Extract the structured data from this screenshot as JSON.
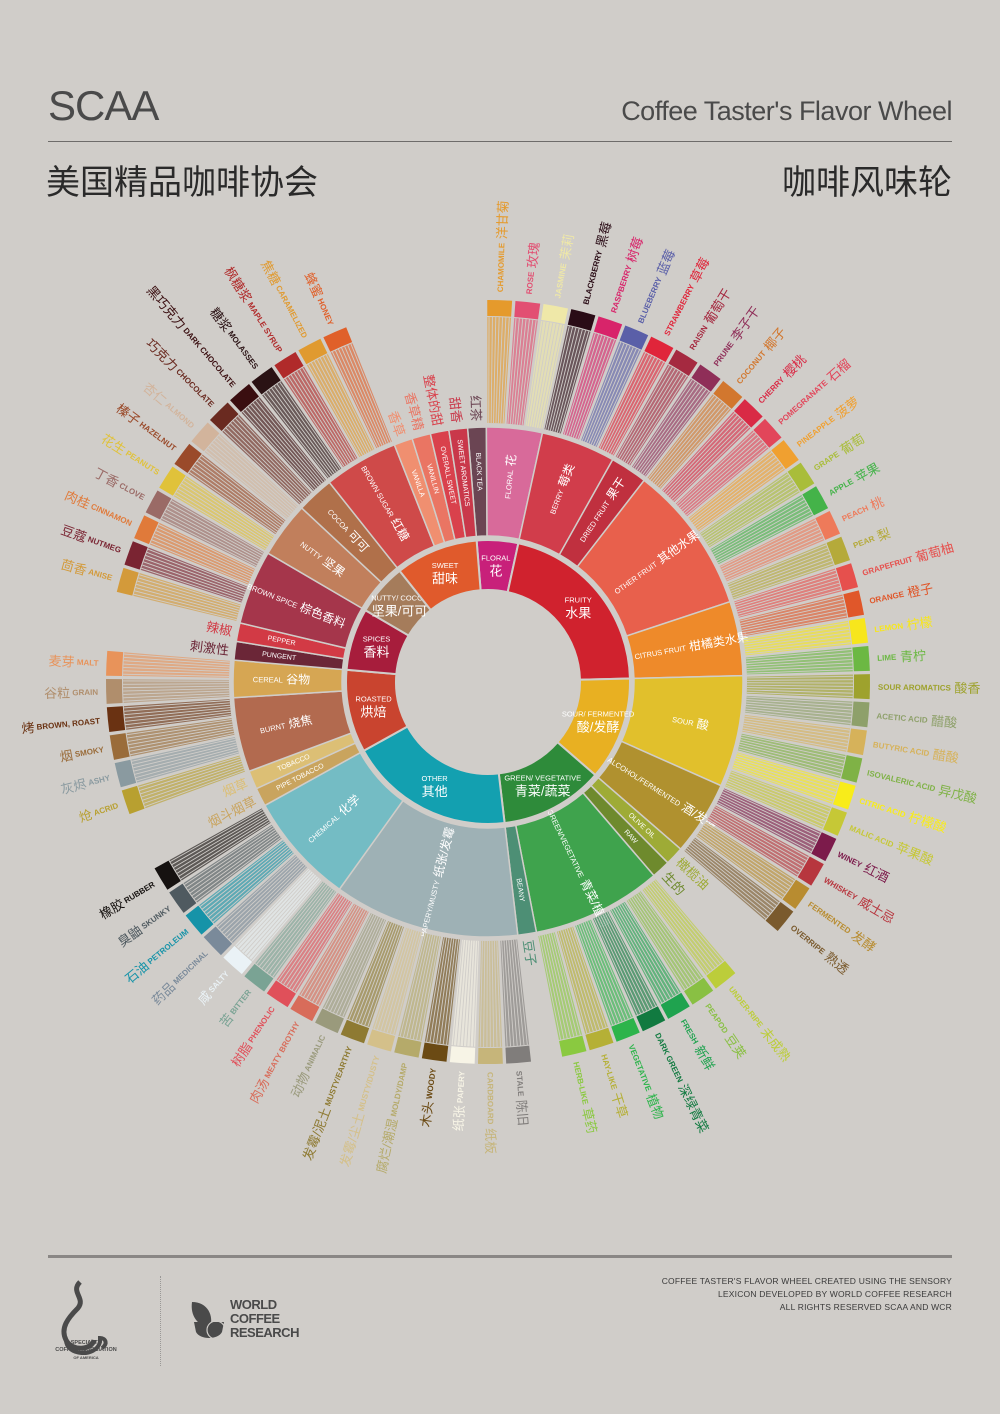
{
  "header": {
    "title_left": "SCAA",
    "title_right": "Coffee Taster's Flavor Wheel",
    "subtitle_left": "美国精品咖啡协会",
    "subtitle_right": "咖啡风味轮"
  },
  "wheel": {
    "background": "#d0cdc9",
    "categories": [
      {
        "en": "FLORAL",
        "zh": "花",
        "color": "#c8207a",
        "children": [
          {
            "en": "BLACK TEA",
            "zh": "红茶",
            "color": "#6b4553"
          },
          {
            "en": "FLORAL",
            "zh": "花",
            "color": "#d86a9a",
            "children": [
              {
                "en": "CHAMOMILE",
                "zh": "洋甘菊",
                "color": "#e59a2c"
              },
              {
                "en": "ROSE",
                "zh": "玫瑰",
                "color": "#e24f72"
              },
              {
                "en": "JASMINE",
                "zh": "茉莉",
                "color": "#efe8a8"
              }
            ]
          }
        ]
      },
      {
        "en": "FRUITY",
        "zh": "水果",
        "color": "#d0222e",
        "children": [
          {
            "en": "BERRY",
            "zh": "莓类",
            "color": "#d13d4b",
            "children": [
              {
                "en": "BLACKBERRY",
                "zh": "黑莓",
                "color": "#2a0c16"
              },
              {
                "en": "RASPBERRY",
                "zh": "树莓",
                "color": "#d8246a"
              },
              {
                "en": "BLUEBERRY",
                "zh": "蓝莓",
                "color": "#5a5fa8"
              },
              {
                "en": "STRAWBERRY",
                "zh": "草莓",
                "color": "#e0253a"
              }
            ]
          },
          {
            "en": "DRIED FRUIT",
            "zh": "果干",
            "color": "#c0303f",
            "children": [
              {
                "en": "RAISIN",
                "zh": "葡萄干",
                "color": "#a52940"
              },
              {
                "en": "PRUNE",
                "zh": "李子干",
                "color": "#8f2e58"
              }
            ]
          },
          {
            "en": "OTHER FRUIT",
            "zh": "其他水果",
            "color": "#e8604c",
            "children": [
              {
                "en": "COCONUT",
                "zh": "椰子",
                "color": "#d2772e"
              },
              {
                "en": "CHERRY",
                "zh": "樱桃",
                "color": "#d92a45"
              },
              {
                "en": "POMEGRANATE",
                "zh": "石榴",
                "color": "#e2465a"
              },
              {
                "en": "PINEAPPLE",
                "zh": "菠萝",
                "color": "#f0a030"
              },
              {
                "en": "GRAPE",
                "zh": "葡萄",
                "color": "#a9bd3a"
              },
              {
                "en": "APPLE",
                "zh": "苹果",
                "color": "#44b349"
              },
              {
                "en": "PEACH",
                "zh": "桃",
                "color": "#ee7a5a"
              },
              {
                "en": "PEAR",
                "zh": "梨",
                "color": "#b5aa3a"
              }
            ]
          },
          {
            "en": "CITRUS FRUIT",
            "zh": "柑橘类水果",
            "color": "#ee8a2a",
            "children": [
              {
                "en": "GRAPEFRUIT",
                "zh": "葡萄柚",
                "color": "#e6504d"
              },
              {
                "en": "ORANGE",
                "zh": "橙子",
                "color": "#e0572a"
              },
              {
                "en": "LEMON",
                "zh": "柠檬",
                "color": "#f7e61c"
              },
              {
                "en": "LIME",
                "zh": "青柠",
                "color": "#6cb843"
              }
            ]
          }
        ]
      },
      {
        "en": "SOUR/ FERMENTED",
        "zh": "酸/发酵",
        "color": "#e8b022",
        "children": [
          {
            "en": "SOUR",
            "zh": "酸",
            "color": "#e1c02c",
            "children": [
              {
                "en": "SOUR AROMATICS",
                "zh": "酸香",
                "color": "#9ea22d"
              },
              {
                "en": "ACETIC ACID",
                "zh": "醋酸",
                "color": "#8ea06a"
              },
              {
                "en": "BUTYRIC ACID",
                "zh": "醋酸",
                "color": "#d6b25a"
              },
              {
                "en": "ISOVALERIC ACID",
                "zh": "异戊酸",
                "color": "#7fb246"
              },
              {
                "en": "CITRIC ACID",
                "zh": "柠檬酸",
                "color": "#f8ec1a"
              },
              {
                "en": "MALIC ACID",
                "zh": "苹果酸",
                "color": "#c6c836"
              }
            ]
          },
          {
            "en": "ALCOHOL/FERMENTED",
            "zh": "酒/发酵",
            "color": "#b0912f",
            "children": [
              {
                "en": "WINEY",
                "zh": "红酒",
                "color": "#7c1b4b"
              },
              {
                "en": "WHISKEY",
                "zh": "威士忌",
                "color": "#b7363e"
              },
              {
                "en": "FERMENTED",
                "zh": "发酵",
                "color": "#b88c30"
              },
              {
                "en": "OVERRIPE",
                "zh": "熟透",
                "color": "#7a5a2d"
              }
            ]
          }
        ]
      },
      {
        "en": "GREEN/ VEGETATIVE",
        "zh": "青菜/蔬菜",
        "color": "#2e8b3a",
        "children": [
          {
            "en": "OLIVE OIL",
            "zh": "橄榄油",
            "color": "#9eab36"
          },
          {
            "en": "RAW",
            "zh": "生的",
            "color": "#6e8a2d"
          },
          {
            "en": "GREEN/VEGETATIVE",
            "zh": "青菜/植物",
            "color": "#3fa34d",
            "children": [
              {
                "en": "UNDER-RIPE",
                "zh": "未成熟",
                "color": "#bccd3a"
              },
              {
                "en": "PEAPOD",
                "zh": "豆荚",
                "color": "#89c043"
              },
              {
                "en": "FRESH",
                "zh": "新鲜",
                "color": "#1fa34f"
              },
              {
                "en": "DARK GREEN",
                "zh": "深绿青菜",
                "color": "#117a40"
              },
              {
                "en": "VEGETATIVE",
                "zh": "植物",
                "color": "#2db44b"
              },
              {
                "en": "HAY-LIKE",
                "zh": "干草",
                "color": "#b5b036"
              },
              {
                "en": "HERB-LIKE",
                "zh": "草药",
                "color": "#8ac940"
              }
            ]
          },
          {
            "en": "BEANY",
            "zh": "豆子",
            "color": "#4d8f75"
          }
        ]
      },
      {
        "en": "OTHER",
        "zh": "其他",
        "color": "#13a0b0",
        "children": [
          {
            "en": "PAPERY/MUSTY",
            "zh": "纸张/发霉",
            "color": "#9eb1b5",
            "children": [
              {
                "en": "STALE",
                "zh": "陈旧",
                "color": "#807d7b"
              },
              {
                "en": "CARDBOARD",
                "zh": "纸板",
                "color": "#c6b57a"
              },
              {
                "en": "PAPERY",
                "zh": "纸张",
                "color": "#f7f4e6"
              },
              {
                "en": "WOODY",
                "zh": "木头",
                "color": "#6b4a14"
              },
              {
                "en": "MOLDY/DAMP",
                "zh": "腐烂/潮湿",
                "color": "#b5aa6a"
              },
              {
                "en": "MUSTY/DUSTY",
                "zh": "发霉/尘土",
                "color": "#d4c08a"
              },
              {
                "en": "MUSTY/EARTHY",
                "zh": "发霉/泥土",
                "color": "#8e7a32"
              },
              {
                "en": "ANIMALIC",
                "zh": "动物",
                "color": "#9a9a7c"
              },
              {
                "en": "MEATY BROTHY",
                "zh": "肉汤",
                "color": "#d86c5a"
              },
              {
                "en": "PHENOLIC",
                "zh": "树脂",
                "color": "#e0505a"
              }
            ]
          },
          {
            "en": "CHEMICAL",
            "zh": "化学",
            "color": "#74bcc4",
            "children": [
              {
                "en": "BITTER",
                "zh": "苦",
                "color": "#7aa394"
              },
              {
                "en": "SALTY",
                "zh": "咸",
                "color": "#eaf2f6"
              },
              {
                "en": "MEDICINAL",
                "zh": "药品",
                "color": "#7a8a9a"
              },
              {
                "en": "PETROLEUM",
                "zh": "石油",
                "color": "#1693a8"
              },
              {
                "en": "SKUNKY",
                "zh": "臭鼬",
                "color": "#4f5a60"
              },
              {
                "en": "RUBBER",
                "zh": "橡胶",
                "color": "#161210"
              }
            ]
          }
        ]
      },
      {
        "en": "ROASTED",
        "zh": "烘焙",
        "color": "#c9442f",
        "children": [
          {
            "en": "PIPE TOBACCO",
            "zh": "烟斗烟草",
            "color": "#c9a45e"
          },
          {
            "en": "TOBACCO",
            "zh": "烟草",
            "color": "#dcbf75"
          },
          {
            "en": "BURNT",
            "zh": "烧焦",
            "color": "#b26a4f",
            "children": [
              {
                "en": "ACRID",
                "zh": "炝",
                "color": "#b8a030"
              },
              {
                "en": "ASHY",
                "zh": "灰烬",
                "color": "#8a9aa0"
              },
              {
                "en": "SMOKY",
                "zh": "烟",
                "color": "#9a6c3a"
              },
              {
                "en": "BROWN, ROAST",
                "zh": "烤",
                "color": "#6a3212"
              }
            ]
          },
          {
            "en": "CEREAL",
            "zh": "谷物",
            "color": "#d6a653",
            "children": [
              {
                "en": "GRAIN",
                "zh": "谷粒",
                "color": "#b08e6c"
              },
              {
                "en": "MALT",
                "zh": "麦芽",
                "color": "#e8935a"
              }
            ]
          }
        ]
      },
      {
        "en": "SPICES",
        "zh": "香料",
        "color": "#a71d3c",
        "children": [
          {
            "en": "PUNGENT",
            "zh": "刺激性",
            "color": "#6b2637"
          },
          {
            "en": "PEPPER",
            "zh": "辣椒",
            "color": "#d23a45"
          },
          {
            "en": "BROWN SPICE",
            "zh": "棕色香料",
            "color": "#a5364b",
            "children": [
              {
                "en": "ANISE",
                "zh": "茴香",
                "color": "#d39a3a"
              },
              {
                "en": "NUTMEG",
                "zh": "豆蔻",
                "color": "#7a2432"
              },
              {
                "en": "CINNAMON",
                "zh": "肉桂",
                "color": "#e07a3a"
              },
              {
                "en": "CLOVE",
                "zh": "丁香",
                "color": "#9a6a66"
              }
            ]
          }
        ]
      },
      {
        "en": "NUTTY/ COCOA",
        "zh": "坚果/可可",
        "color": "#a57c5b",
        "children": [
          {
            "en": "NUTTY",
            "zh": "坚果",
            "color": "#c17f5c",
            "children": [
              {
                "en": "PEANUTS",
                "zh": "花生",
                "color": "#e0c23a"
              },
              {
                "en": "HAZELNUT",
                "zh": "榛子",
                "color": "#9a4a2a"
              },
              {
                "en": "ALMOND",
                "zh": "杏仁",
                "color": "#d2b49c"
              }
            ]
          },
          {
            "en": "COCOA",
            "zh": "可可",
            "color": "#b0704a",
            "children": [
              {
                "en": "CHOCOLATE",
                "zh": "巧克力",
                "color": "#6a2a20"
              },
              {
                "en": "DARK CHOCOLATE",
                "zh": "黑巧克力",
                "color": "#3a0e10"
              }
            ]
          }
        ]
      },
      {
        "en": "SWEET",
        "zh": "甜味",
        "color": "#e05a2c",
        "children": [
          {
            "en": "BROWN SUGAR",
            "zh": "红糖",
            "color": "#cf4a49",
            "children": [
              {
                "en": "MOLASSES",
                "zh": "糖浆",
                "color": "#2a1214"
              },
              {
                "en": "MAPLE SYRUP",
                "zh": "枫糖浆",
                "color": "#b02a2a"
              },
              {
                "en": "CARAMELIZED",
                "zh": "焦糖",
                "color": "#e09a30"
              },
              {
                "en": "HONEY",
                "zh": "蜂蜜",
                "color": "#e0602a"
              }
            ]
          },
          {
            "en": "VANILLA",
            "zh": "香草",
            "color": "#f08f70"
          },
          {
            "en": "VANILLIN",
            "zh": "香草精",
            "color": "#ea7563"
          },
          {
            "en": "OVERALL SWEET",
            "zh": "整体的甜",
            "color": "#d9414c"
          },
          {
            "en": "SWEET AROMATICS",
            "zh": "甜香",
            "color": "#c9384a"
          }
        ]
      }
    ]
  },
  "footer": {
    "credits": [
      "COFFEE TASTER'S FLAVOR WHEEL CREATED USING THE SENSORY",
      "LEXICON DEVELOPED BY WORLD COFFEE RESEARCH",
      "ALL RIGHTS RESERVED SCAA AND WCR"
    ],
    "scaa_logo_text": [
      "SPECIALTY",
      "COFFEE ASSOCIATION",
      "OF AMERICA"
    ],
    "wcr_logo_text": [
      "WORLD",
      "COFFEE",
      "RESEARCH"
    ]
  }
}
